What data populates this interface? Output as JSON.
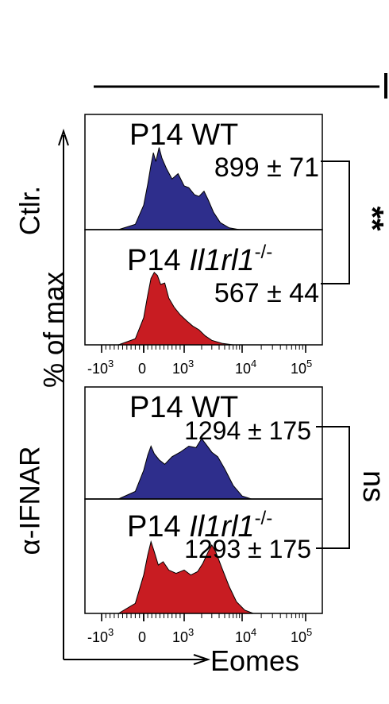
{
  "colors": {
    "wt_fill": "#2E2E8C",
    "ko_fill": "#C81C22",
    "stroke": "#000000",
    "background": "#ffffff"
  },
  "y_axis_label": "% of max",
  "x_axis_label": "Eomes",
  "chart_data": [
    {
      "type": "area",
      "row_label": "Ctlr.",
      "xscale": "biexponential",
      "xlim": [
        -1000,
        100000
      ],
      "x_tick_labels": [
        {
          "base": "-10",
          "exp": "3",
          "value": -1000
        },
        {
          "base": "0",
          "exp": "",
          "value": 0
        },
        {
          "base": "10",
          "exp": "3",
          "value": 1000
        },
        {
          "base": "10",
          "exp": "4",
          "value": 10000
        },
        {
          "base": "10",
          "exp": "5",
          "value": 100000
        }
      ],
      "grid": false,
      "series": [
        {
          "name": "P14 WT",
          "name_prefix": "P14",
          "name_genotype": "WT",
          "name_superscript": "",
          "mfi": "899 ± 71",
          "color": "#2E2E8C",
          "curve": [
            [
              -600,
              0
            ],
            [
              -200,
              6
            ],
            [
              0,
              28
            ],
            [
              100,
              52
            ],
            [
              180,
              74
            ],
            [
              240,
              88
            ],
            [
              300,
              78
            ],
            [
              380,
              94
            ],
            [
              450,
              82
            ],
            [
              560,
              70
            ],
            [
              700,
              58
            ],
            [
              850,
              64
            ],
            [
              1000,
              50
            ],
            [
              1200,
              48
            ],
            [
              1500,
              40
            ],
            [
              1800,
              38
            ],
            [
              2200,
              44
            ],
            [
              2600,
              34
            ],
            [
              3200,
              20
            ],
            [
              4200,
              8
            ],
            [
              6000,
              2
            ],
            [
              9000,
              0
            ]
          ]
        },
        {
          "name": "P14 Il1rl1-/-",
          "name_prefix": "P14",
          "name_genotype": "Il1rl1",
          "name_superscript": "-/-",
          "mfi": "567 ± 44",
          "color": "#C81C22",
          "curve": [
            [
              -600,
              0
            ],
            [
              -200,
              8
            ],
            [
              0,
              36
            ],
            [
              100,
              66
            ],
            [
              180,
              88
            ],
            [
              260,
              96
            ],
            [
              340,
              92
            ],
            [
              420,
              80
            ],
            [
              520,
              82
            ],
            [
              620,
              62
            ],
            [
              750,
              50
            ],
            [
              900,
              40
            ],
            [
              1100,
              32
            ],
            [
              1400,
              25
            ],
            [
              1800,
              20
            ],
            [
              2300,
              12
            ],
            [
              3000,
              6
            ],
            [
              4500,
              2
            ],
            [
              7000,
              0
            ]
          ]
        }
      ],
      "comparison": "**"
    },
    {
      "type": "area",
      "row_label": "α-IFNAR",
      "xscale": "biexponential",
      "xlim": [
        -1000,
        100000
      ],
      "x_tick_labels": [
        {
          "base": "-10",
          "exp": "3",
          "value": -1000
        },
        {
          "base": "0",
          "exp": "",
          "value": 0
        },
        {
          "base": "10",
          "exp": "3",
          "value": 1000
        },
        {
          "base": "10",
          "exp": "4",
          "value": 10000
        },
        {
          "base": "10",
          "exp": "5",
          "value": 100000
        }
      ],
      "grid": false,
      "series": [
        {
          "name": "P14 WT",
          "name_prefix": "P14",
          "name_genotype": "WT",
          "name_superscript": "",
          "mfi": "1294 ± 175",
          "color": "#2E2E8C",
          "curve": [
            [
              -600,
              0
            ],
            [
              -200,
              10
            ],
            [
              0,
              38
            ],
            [
              100,
              58
            ],
            [
              180,
              70
            ],
            [
              260,
              60
            ],
            [
              380,
              52
            ],
            [
              520,
              46
            ],
            [
              700,
              56
            ],
            [
              900,
              62
            ],
            [
              1200,
              70
            ],
            [
              1600,
              68
            ],
            [
              2000,
              80
            ],
            [
              2400,
              72
            ],
            [
              3000,
              62
            ],
            [
              3800,
              56
            ],
            [
              5000,
              40
            ],
            [
              7000,
              18
            ],
            [
              10000,
              4
            ],
            [
              14000,
              0
            ]
          ]
        },
        {
          "name": "P14 Il1rl1-/-",
          "name_prefix": "P14",
          "name_genotype": "Il1rl1",
          "name_superscript": "-/-",
          "mfi": "1293 ± 175",
          "color": "#C81C22",
          "curve": [
            [
              -600,
              0
            ],
            [
              -200,
              12
            ],
            [
              0,
              46
            ],
            [
              100,
              70
            ],
            [
              180,
              86
            ],
            [
              260,
              74
            ],
            [
              360,
              58
            ],
            [
              480,
              62
            ],
            [
              620,
              52
            ],
            [
              800,
              48
            ],
            [
              1000,
              52
            ],
            [
              1300,
              46
            ],
            [
              1700,
              50
            ],
            [
              2100,
              60
            ],
            [
              2600,
              74
            ],
            [
              3000,
              82
            ],
            [
              3500,
              74
            ],
            [
              4500,
              54
            ],
            [
              6000,
              32
            ],
            [
              8000,
              14
            ],
            [
              11000,
              4
            ],
            [
              15000,
              0
            ]
          ]
        }
      ],
      "comparison": "ns"
    }
  ]
}
